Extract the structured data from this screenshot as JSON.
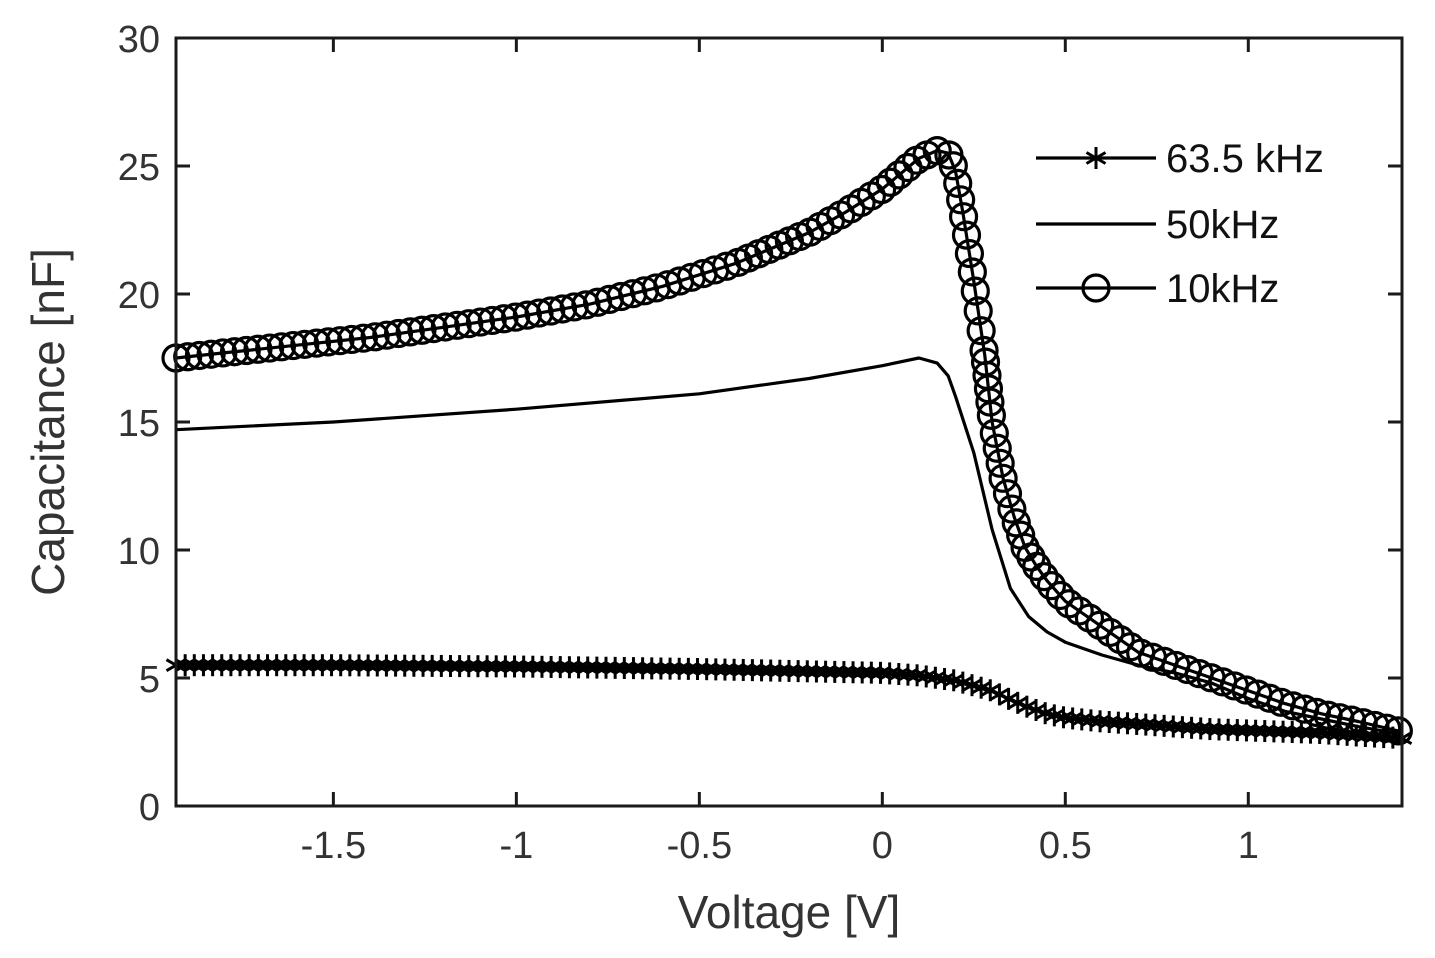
{
  "chart_data": {
    "type": "line",
    "title": "",
    "xlabel": "Voltage [V]",
    "ylabel": "Capacitance [nF]",
    "xlim": [
      -1.93,
      1.42
    ],
    "ylim": [
      0,
      30
    ],
    "xticks": [
      -1.5,
      -1,
      -0.5,
      0,
      0.5,
      1
    ],
    "xtick_labels": [
      "-1.5",
      "-1",
      "-0.5",
      "0",
      "0.5",
      "1"
    ],
    "yticks": [
      0,
      5,
      10,
      15,
      20,
      25,
      30
    ],
    "ytick_labels": [
      "0",
      "5",
      "10",
      "15",
      "20",
      "25",
      "30"
    ],
    "grid": false,
    "legend_position": "top-right",
    "series": [
      {
        "name": "63.5 kHz",
        "marker": "asterisk",
        "color": "#000000",
        "x": [
          -1.93,
          -1.5,
          -1.0,
          -0.5,
          0.0,
          0.1,
          0.15,
          0.2,
          0.25,
          0.3,
          0.35,
          0.4,
          0.45,
          0.5,
          0.6,
          0.7,
          0.8,
          0.9,
          1.0,
          1.1,
          1.2,
          1.3,
          1.42
        ],
        "y": [
          5.5,
          5.5,
          5.45,
          5.35,
          5.2,
          5.1,
          5.0,
          4.9,
          4.7,
          4.5,
          4.15,
          3.85,
          3.6,
          3.45,
          3.3,
          3.2,
          3.1,
          3.0,
          2.95,
          2.9,
          2.85,
          2.75,
          2.65
        ]
      },
      {
        "name": "50kHz",
        "marker": "none",
        "color": "#000000",
        "x": [
          -1.93,
          -1.5,
          -1.0,
          -0.5,
          -0.2,
          0.0,
          0.1,
          0.15,
          0.18,
          0.2,
          0.25,
          0.3,
          0.35,
          0.4,
          0.45,
          0.5,
          0.6,
          0.7,
          0.8,
          0.9,
          1.0,
          1.1,
          1.2,
          1.3,
          1.42
        ],
        "y": [
          14.7,
          15.0,
          15.5,
          16.1,
          16.7,
          17.2,
          17.5,
          17.3,
          16.8,
          16.0,
          13.8,
          10.8,
          8.5,
          7.4,
          6.8,
          6.4,
          5.9,
          5.5,
          5.2,
          4.8,
          4.2,
          3.7,
          3.4,
          3.1,
          2.8
        ]
      },
      {
        "name": "10kHz",
        "marker": "circle",
        "color": "#000000",
        "x": [
          -1.93,
          -1.8,
          -1.6,
          -1.4,
          -1.2,
          -1.0,
          -0.8,
          -0.6,
          -0.4,
          -0.2,
          -0.1,
          0.0,
          0.05,
          0.1,
          0.15,
          0.18,
          0.2,
          0.22,
          0.25,
          0.28,
          0.3,
          0.33,
          0.36,
          0.39,
          0.42,
          0.45,
          0.5,
          0.55,
          0.6,
          0.65,
          0.7,
          0.8,
          0.9,
          1.0,
          1.1,
          1.2,
          1.3,
          1.42
        ],
        "y": [
          17.5,
          17.7,
          18.0,
          18.3,
          18.7,
          19.1,
          19.6,
          20.3,
          21.2,
          22.4,
          23.2,
          24.1,
          24.7,
          25.3,
          25.6,
          25.5,
          24.8,
          23.2,
          20.5,
          17.6,
          15.0,
          12.8,
          11.3,
          10.1,
          9.4,
          8.8,
          8.0,
          7.5,
          7.0,
          6.5,
          6.0,
          5.5,
          5.0,
          4.5,
          4.0,
          3.6,
          3.3,
          2.9
        ]
      }
    ]
  }
}
